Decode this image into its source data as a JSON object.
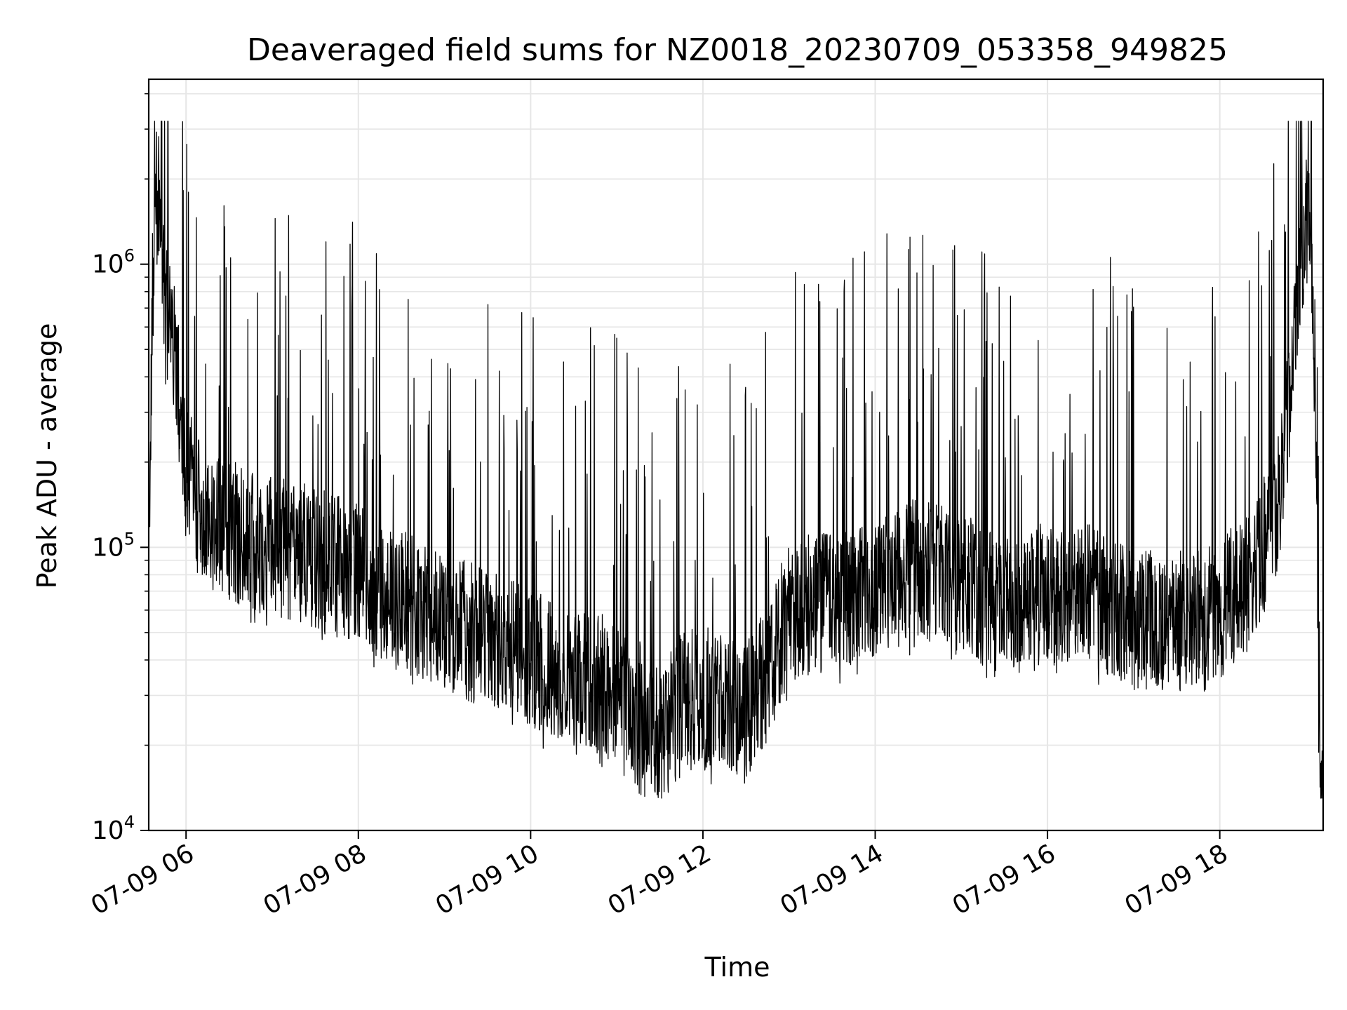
{
  "chart_data": {
    "type": "line",
    "title": "Deaveraged field sums for NZ0018_20230709_053358_949825",
    "xlabel": "Time",
    "ylabel": "Peak ADU - average",
    "yscale": "log",
    "ylim": [
      10000,
      4500000
    ],
    "xlim": [
      "2023-07-09 05:34",
      "2023-07-09 19:12"
    ],
    "grid": true,
    "line_color": "#000000",
    "grid_color": "#e6e6e6",
    "x_ticks": [
      {
        "value": "2023-07-09 06:00",
        "label": "07-09 06"
      },
      {
        "value": "2023-07-09 08:00",
        "label": "07-09 08"
      },
      {
        "value": "2023-07-09 10:00",
        "label": "07-09 10"
      },
      {
        "value": "2023-07-09 12:00",
        "label": "07-09 12"
      },
      {
        "value": "2023-07-09 14:00",
        "label": "07-09 14"
      },
      {
        "value": "2023-07-09 16:00",
        "label": "07-09 16"
      },
      {
        "value": "2023-07-09 18:00",
        "label": "07-09 18"
      }
    ],
    "y_ticks": [
      {
        "value": 10000,
        "base": "10",
        "exp": "4"
      },
      {
        "value": 100000,
        "base": "10",
        "exp": "5"
      },
      {
        "value": 1000000,
        "base": "10",
        "exp": "6"
      }
    ],
    "series": [
      {
        "x": [
          "2023-07-09 05:34",
          "2023-07-09 05:36",
          "2023-07-09 05:38",
          "2023-07-09 05:40",
          "2023-07-09 05:44",
          "2023-07-09 05:48",
          "2023-07-09 05:52",
          "2023-07-09 05:56",
          "2023-07-09 06:00",
          "2023-07-09 06:05",
          "2023-07-09 06:10",
          "2023-07-09 06:15",
          "2023-07-09 06:20",
          "2023-07-09 06:30",
          "2023-07-09 06:40",
          "2023-07-09 06:50",
          "2023-07-09 07:00",
          "2023-07-09 07:20",
          "2023-07-09 07:40",
          "2023-07-09 08:00",
          "2023-07-09 08:30",
          "2023-07-09 09:00",
          "2023-07-09 09:30",
          "2023-07-09 10:00",
          "2023-07-09 10:30",
          "2023-07-09 11:00",
          "2023-07-09 11:20",
          "2023-07-09 11:30",
          "2023-07-09 11:45",
          "2023-07-09 12:00",
          "2023-07-09 12:15",
          "2023-07-09 12:30",
          "2023-07-09 12:45",
          "2023-07-09 13:00",
          "2023-07-09 13:30",
          "2023-07-09 14:00",
          "2023-07-09 14:30",
          "2023-07-09 15:00",
          "2023-07-09 15:30",
          "2023-07-09 16:00",
          "2023-07-09 16:30",
          "2023-07-09 17:00",
          "2023-07-09 17:30",
          "2023-07-09 18:00",
          "2023-07-09 18:20",
          "2023-07-09 18:35",
          "2023-07-09 18:45",
          "2023-07-09 18:50",
          "2023-07-09 18:55",
          "2023-07-09 19:00",
          "2023-07-09 19:04",
          "2023-07-09 19:07",
          "2023-07-09 19:09",
          "2023-07-09 19:12"
        ],
        "y": [
          100000,
          550000,
          1500000,
          2000000,
          800000,
          650000,
          500000,
          300000,
          200000,
          150000,
          140000,
          130000,
          120000,
          115000,
          110000,
          105000,
          100000,
          95000,
          90000,
          80000,
          65000,
          55000,
          48000,
          40000,
          35000,
          32000,
          25000,
          22000,
          28000,
          30000,
          27000,
          26000,
          35000,
          60000,
          65000,
          70000,
          85000,
          75000,
          60000,
          70000,
          68000,
          55000,
          55000,
          60000,
          80000,
          110000,
          200000,
          450000,
          1000000,
          1400000,
          1200000,
          300000,
          20000,
          15000
        ]
      }
    ]
  }
}
